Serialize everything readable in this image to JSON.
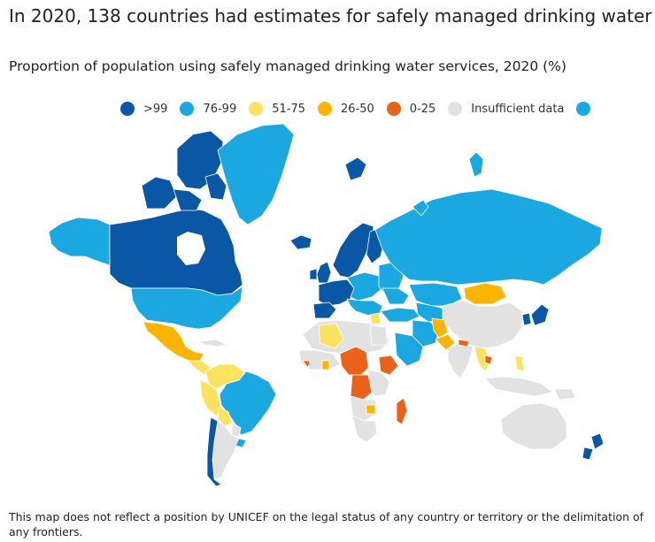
{
  "title": "In 2020, 138 countries had estimates for safely managed drinking water",
  "subtitle": "Proportion of population using safely managed drinking water services, 2020 (%)",
  "legend": [
    {
      "label": ">99",
      "color": "#0a57a5"
    },
    {
      "label": "76-99",
      "color": "#1ba7e0"
    },
    {
      "label": "51-75",
      "color": "#fde25f"
    },
    {
      "label": "26-50",
      "color": "#fbb400"
    },
    {
      "label": "0-25",
      "color": "#ea6219"
    },
    {
      "label": "Insufficient data",
      "color": "#e2e2e2"
    },
    {
      "label": "",
      "color": "#1ba7e0"
    }
  ],
  "colors": {
    "c99": "#0a57a5",
    "c76": "#1ba7e0",
    "c51": "#fde25f",
    "c26": "#fbb400",
    "c0": "#ea6219",
    "none": "#e2e2e2"
  },
  "footnote": "This map does not reflect a position by UNICEF on the legal status of any country or territory or the delimitation of any frontiers."
}
